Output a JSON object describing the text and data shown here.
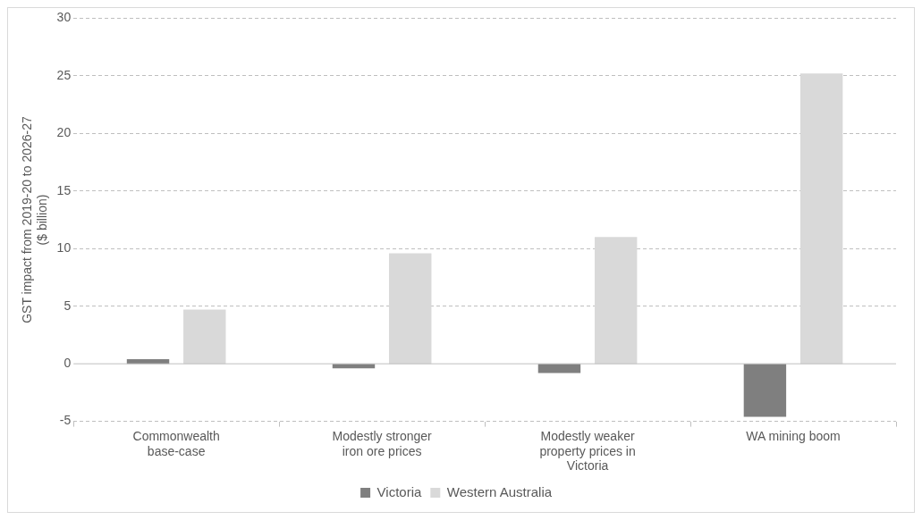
{
  "chart_data": {
    "type": "bar",
    "categories": [
      "Commonwealth base-case",
      "Modestly stronger iron ore prices",
      "Modestly weaker property prices in Victoria",
      "WA mining boom"
    ],
    "ylabel": "GST impact from 2019-20 to 2026-27\n($ billion)",
    "series": [
      {
        "name": "Victoria",
        "color": "#7f7f7f",
        "values": [
          0.4,
          -0.4,
          -0.8,
          -4.6
        ]
      },
      {
        "name": "Western Australia",
        "color": "#d9d9d9",
        "values": [
          4.7,
          9.6,
          11.0,
          25.2
        ]
      }
    ],
    "ylim": [
      -5,
      30
    ],
    "yticks": [
      -5,
      0,
      5,
      10,
      15,
      20,
      25,
      30
    ],
    "grid": "y",
    "legend": "bottom"
  }
}
